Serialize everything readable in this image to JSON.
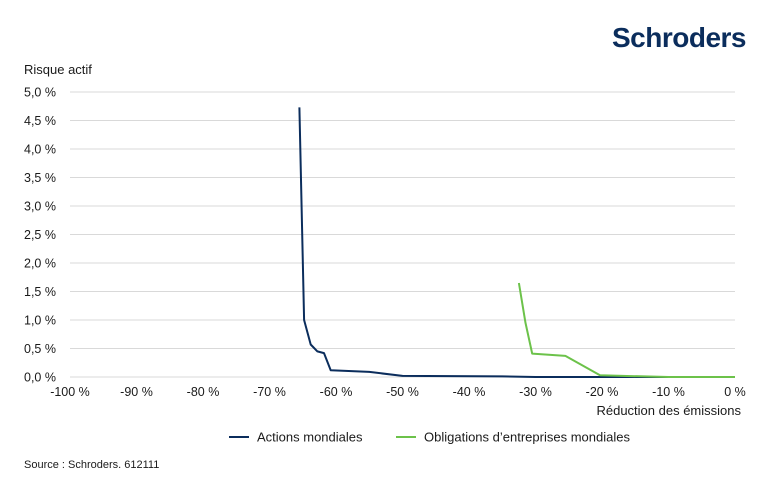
{
  "brand": {
    "name": "Schroders"
  },
  "colors": {
    "brand": "#0b2d5c",
    "series1": "#0b2d5c",
    "series2": "#6cc24a",
    "grid": "#d9d9d9"
  },
  "source": "Source : Schroders. 612111",
  "chart_data": {
    "type": "line",
    "title": "",
    "ylabel": "Risque actif",
    "xlabel": "Réduction des émissions",
    "xlim": [
      -100,
      0
    ],
    "ylim": [
      0,
      5
    ],
    "x_ticks": [
      -100,
      -90,
      -80,
      -70,
      -60,
      -50,
      -40,
      -30,
      -20,
      -10,
      0
    ],
    "x_tick_labels": [
      "-100 %",
      "-90 %",
      "-80 %",
      "-70 %",
      "-60 %",
      "-50 %",
      "-40 %",
      "-30 %",
      "-20 %",
      "-10 %",
      "0 %"
    ],
    "y_ticks": [
      0,
      0.5,
      1.0,
      1.5,
      2.0,
      2.5,
      3.0,
      3.5,
      4.0,
      4.5,
      5.0
    ],
    "y_tick_labels": [
      "0,0 %",
      "0,5 %",
      "1,0 %",
      "1,5 %",
      "2,0 %",
      "2,5 %",
      "3,0 %",
      "3,5 %",
      "4,0 %",
      "4,5 %",
      "5,0 %"
    ],
    "grid": "horizontal",
    "legend_position": "bottom",
    "series": [
      {
        "name": "Actions mondiales",
        "color": "#0b2d5c",
        "points": [
          [
            -65.5,
            4.73
          ],
          [
            -64.8,
            1.0
          ],
          [
            -63.8,
            0.57
          ],
          [
            -62.8,
            0.45
          ],
          [
            -61.8,
            0.42
          ],
          [
            -60.8,
            0.12
          ],
          [
            -55,
            0.09
          ],
          [
            -50,
            0.02
          ],
          [
            -35,
            0.01
          ],
          [
            -30,
            0.0
          ],
          [
            0,
            0.0
          ]
        ]
      },
      {
        "name": "Obligations d’entreprises mondiales",
        "color": "#6cc24a",
        "points": [
          [
            -32.5,
            1.65
          ],
          [
            -31.5,
            0.95
          ],
          [
            -30.5,
            0.41
          ],
          [
            -25.5,
            0.37
          ],
          [
            -20.3,
            0.03
          ],
          [
            -10,
            0.0
          ],
          [
            0,
            0.0
          ]
        ]
      }
    ]
  }
}
